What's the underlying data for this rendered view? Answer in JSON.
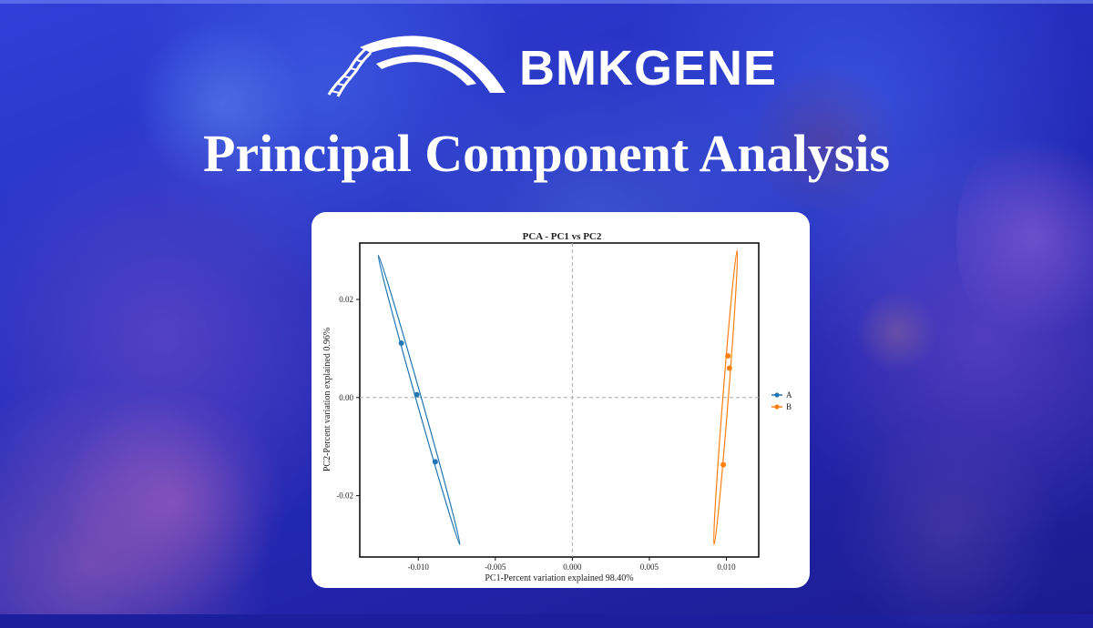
{
  "brand": {
    "name": "BMKGENE"
  },
  "page": {
    "title": "Principal Component Analysis"
  },
  "colors": {
    "series_A": "#1f77b4",
    "series_B": "#ff7f0e",
    "background": "#2530c0"
  },
  "chart_data": {
    "type": "scatter",
    "title": "PCA - PC1 vs PC2",
    "xlabel": "PC1-Percent variation explained 98.40%",
    "ylabel": "PC2-Percent variation explained 0.96%",
    "xlim": [
      -0.0138,
      0.0121
    ],
    "ylim": [
      -0.0325,
      0.0315
    ],
    "xticks": [
      {
        "value": -0.01,
        "label": "-0.010"
      },
      {
        "value": -0.005,
        "label": "-0.005"
      },
      {
        "value": 0.0,
        "label": "0.000"
      },
      {
        "value": 0.005,
        "label": "0.005"
      },
      {
        "value": 0.01,
        "label": "0.010"
      }
    ],
    "yticks": [
      {
        "value": -0.02,
        "label": "-0.02"
      },
      {
        "value": 0.0,
        "label": "0.00"
      },
      {
        "value": 0.02,
        "label": "0.02"
      }
    ],
    "grid": false,
    "reference_lines": {
      "x": 0,
      "y": 0
    },
    "legend": "right",
    "series": [
      {
        "name": "A",
        "color": "#1f77b4",
        "points": [
          {
            "x": -0.0111,
            "y": 0.0111
          },
          {
            "x": -0.0101,
            "y": 0.0006
          },
          {
            "x": -0.0089,
            "y": -0.0131
          }
        ],
        "ellipse": [
          {
            "x": -0.0126,
            "y": 0.029
          },
          {
            "x": -0.0073,
            "y": -0.03
          }
        ]
      },
      {
        "name": "B",
        "color": "#ff7f0e",
        "points": [
          {
            "x": 0.0101,
            "y": 0.0085
          },
          {
            "x": 0.0102,
            "y": 0.006
          },
          {
            "x": 0.0098,
            "y": -0.0137
          }
        ],
        "ellipse": [
          {
            "x": 0.0107,
            "y": 0.03
          },
          {
            "x": 0.0092,
            "y": -0.03
          }
        ]
      }
    ]
  }
}
